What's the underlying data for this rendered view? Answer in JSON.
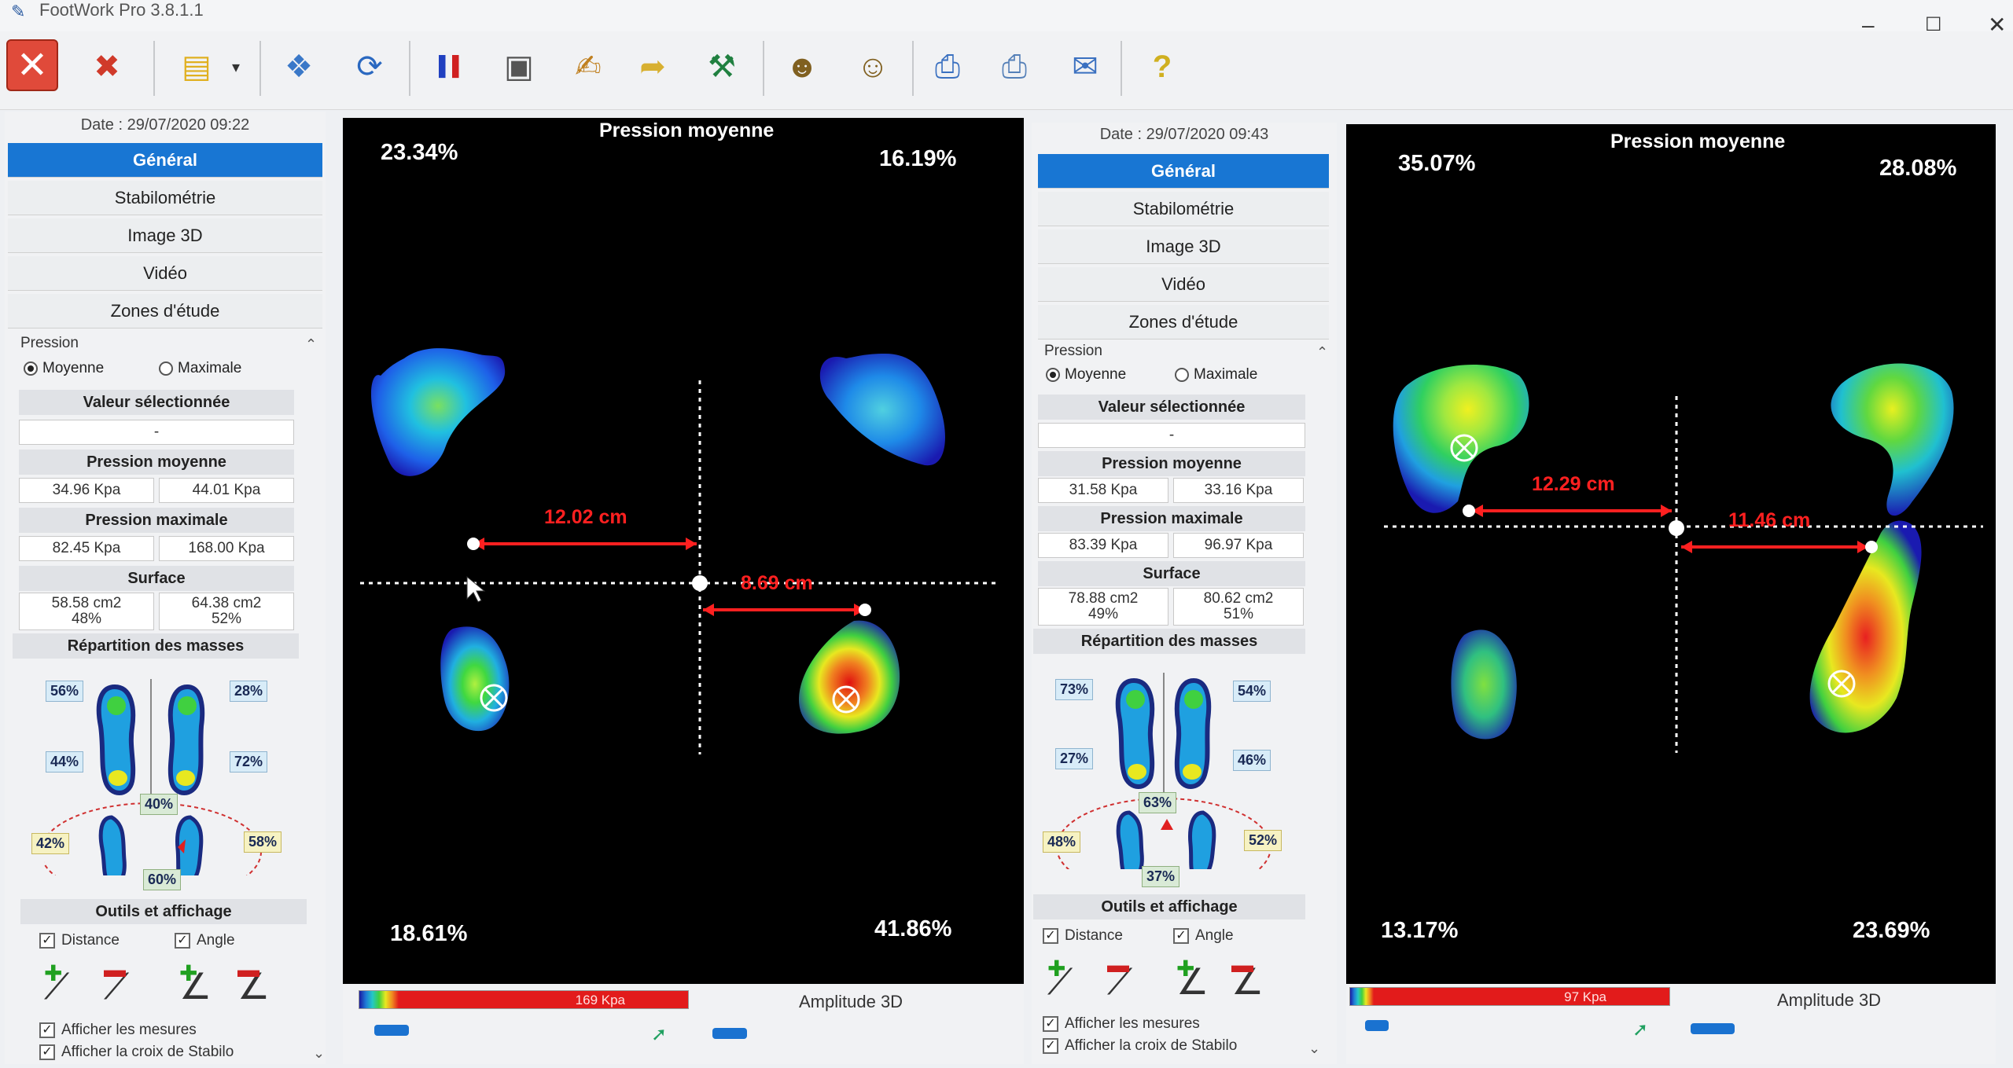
{
  "window": {
    "title": "FootWork Pro 3.8.1.1",
    "minimize": "–",
    "maximize": "☐",
    "close": "✕"
  },
  "toolbar": {
    "icons": [
      "close-red-icon",
      "close-all-icon",
      "color-palette-icon",
      "open-folder-icon",
      "refresh-icon",
      "flag-icon",
      "compare-icon",
      "edit-report-icon",
      "export-icon",
      "tools-icon",
      "user-key-icon",
      "user-mail-icon",
      "print-preview-icon",
      "print-icon",
      "email-icon",
      "help-icon"
    ]
  },
  "panels": [
    {
      "date": "Date : 29/07/2020 09:22",
      "nav": [
        "Général",
        "Stabilométrie",
        "Image 3D",
        "Vidéo",
        "Zones d'étude"
      ],
      "pressure_label": "Pression",
      "radio_mean": "Moyenne",
      "radio_max": "Maximale",
      "selected_value_label": "Valeur sélectionnée",
      "selected_value": "-",
      "mean_pressure_label": "Pression moyenne",
      "mean_left": "34.96 Kpa",
      "mean_right": "44.01 Kpa",
      "max_pressure_label": "Pression maximale",
      "max_left": "82.45 Kpa",
      "max_right": "168.00 Kpa",
      "surface_label": "Surface",
      "surf_left": "58.58 cm2",
      "surf_left_pct": "48%",
      "surf_right": "64.38 cm2",
      "surf_right_pct": "52%",
      "mass_label": "Répartition des masses",
      "mass_tl": "56%",
      "mass_bl": "44%",
      "mass_tr": "28%",
      "mass_br": "72%",
      "bal_left": "42%",
      "bal_top": "40%",
      "bal_right": "58%",
      "bal_bottom": "60%",
      "tools_label": "Outils et affichage",
      "chk_distance": "Distance",
      "chk_angle": "Angle",
      "chk_show_measures": "Afficher les mesures",
      "chk_show_cross": "Afficher la croix de Stabilo",
      "display_title": "Pression moyenne",
      "pct_tl": "23.34%",
      "pct_tr": "16.19%",
      "pct_bl": "18.61%",
      "pct_br": "41.86%",
      "dist1": "12.02 cm",
      "dist2": "8.69 cm",
      "scale_label": "169 Kpa",
      "amplitude_label": "Amplitude 3D"
    },
    {
      "date": "Date : 29/07/2020 09:43",
      "nav": [
        "Général",
        "Stabilométrie",
        "Image 3D",
        "Vidéo",
        "Zones d'étude"
      ],
      "pressure_label": "Pression",
      "radio_mean": "Moyenne",
      "radio_max": "Maximale",
      "selected_value_label": "Valeur sélectionnée",
      "selected_value": "-",
      "mean_pressure_label": "Pression moyenne",
      "mean_left": "31.58 Kpa",
      "mean_right": "33.16 Kpa",
      "max_pressure_label": "Pression maximale",
      "max_left": "83.39 Kpa",
      "max_right": "96.97 Kpa",
      "surface_label": "Surface",
      "surf_left": "78.88 cm2",
      "surf_left_pct": "49%",
      "surf_right": "80.62 cm2",
      "surf_right_pct": "51%",
      "mass_label": "Répartition des masses",
      "mass_tl": "73%",
      "mass_bl": "27%",
      "mass_tr": "54%",
      "mass_br": "46%",
      "bal_left": "48%",
      "bal_top": "63%",
      "bal_right": "52%",
      "bal_bottom": "37%",
      "tools_label": "Outils et affichage",
      "chk_distance": "Distance",
      "chk_angle": "Angle",
      "chk_show_measures": "Afficher les mesures",
      "chk_show_cross": "Afficher la croix de Stabilo",
      "display_title": "Pression moyenne",
      "pct_tl": "35.07%",
      "pct_tr": "28.08%",
      "pct_bl": "13.17%",
      "pct_br": "23.69%",
      "dist1": "12.29 cm",
      "dist2": "11.46 cm",
      "scale_label": "97 Kpa",
      "amplitude_label": "Amplitude 3D"
    }
  ]
}
